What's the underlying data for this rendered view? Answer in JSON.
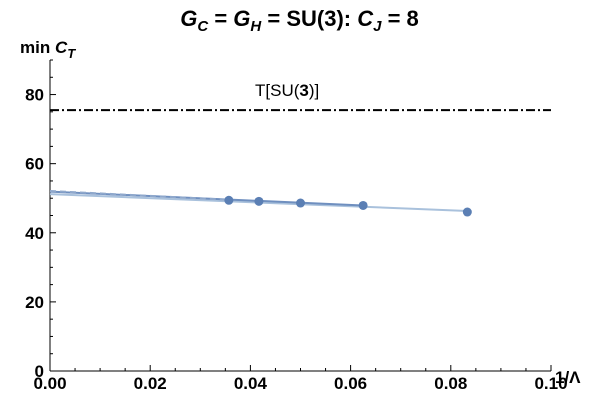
{
  "chart_data": {
    "type": "scatter",
    "title_parts": [
      "G",
      "C",
      " = ",
      "G",
      "H",
      " = SU(3): ",
      "C",
      "J",
      " = 8"
    ],
    "xlabel": "1/Λ",
    "ylabel_parts": [
      "min ",
      "C",
      "T"
    ],
    "xlim": [
      0,
      0.1
    ],
    "ylim": [
      0,
      90
    ],
    "xticks": [
      0,
      0.02,
      0.04,
      0.06,
      0.08,
      0.1
    ],
    "xtick_labels": [
      "0.00",
      "0.02",
      "0.04",
      "0.06",
      "0.08",
      "0.10"
    ],
    "yticks": [
      0,
      20,
      40,
      60,
      80
    ],
    "ytick_labels": [
      "0",
      "20",
      "40",
      "60",
      "80"
    ],
    "grid": false,
    "reference_line": {
      "y": 75.5,
      "label_parts": [
        "T[SU(",
        "3",
        ")]"
      ],
      "style": "dash-dot",
      "color": "#000000"
    },
    "points": {
      "x": [
        0.0357,
        0.0417,
        0.05,
        0.0625,
        0.0833
      ],
      "y": [
        49.4,
        49.1,
        48.6,
        47.9,
        46.0
      ],
      "color": "#5b7fb4"
    },
    "fits": [
      {
        "x": [
          0,
          0.0833
        ],
        "y": [
          51.2,
          46.3
        ],
        "color": "#a9c1dc",
        "style": "solid"
      },
      {
        "x": [
          0,
          0.0625
        ],
        "y": [
          51.9,
          47.9
        ],
        "color": "#6f8fbf",
        "style": "solid"
      },
      {
        "x": [
          0,
          0.035
        ],
        "y": [
          52.1,
          49.6
        ],
        "color": "#8fa8cc",
        "style": "dashed"
      }
    ]
  }
}
